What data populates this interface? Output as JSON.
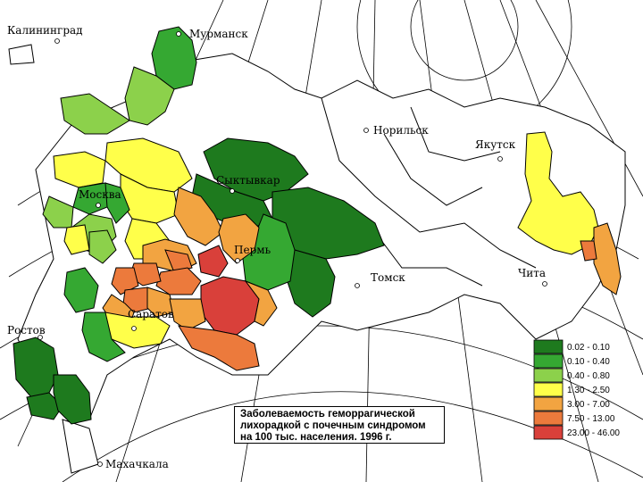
{
  "map": {
    "cities": {
      "kaliningrad": "Калининград",
      "murmansk": "Мурманск",
      "norilsk": "Норильск",
      "yakutsk": "Якутск",
      "syktyvkar": "Сыктывкар",
      "moscow": "Москва",
      "perm": "Пермь",
      "tomsk": "Томск",
      "chita": "Чита",
      "saratov": "Саратов",
      "rostov": "Ростов",
      "makhachkala": "Махачкала"
    },
    "colors": {
      "c1": "#1e7a1e",
      "c2": "#35a832",
      "c3": "#8cd14b",
      "c4": "#ffff4a",
      "c5": "#f2a441",
      "c6": "#ec7a3c",
      "c7": "#d9403a",
      "none": "#ffffff",
      "border": "#000000"
    }
  },
  "legend": {
    "items": [
      {
        "range": "0.02 -  0.10",
        "color": "#1e7a1e"
      },
      {
        "range": "0.10 -  0.40",
        "color": "#35a832"
      },
      {
        "range": "0.40 -  0.80",
        "color": "#8cd14b"
      },
      {
        "range": "1.30 -  2.50",
        "color": "#ffff4a"
      },
      {
        "range": "3.00 -  7.00",
        "color": "#f2a441"
      },
      {
        "range": "7.50 -  13.00",
        "color": "#ec7a3c"
      },
      {
        "range": "23.00 -  46.00",
        "color": "#d9403a"
      }
    ]
  },
  "title": {
    "text": "Заболеваемость геморрагической\nлихорадкой с почечным синдромом\nна 100 тыс. населения.  1996 г."
  }
}
